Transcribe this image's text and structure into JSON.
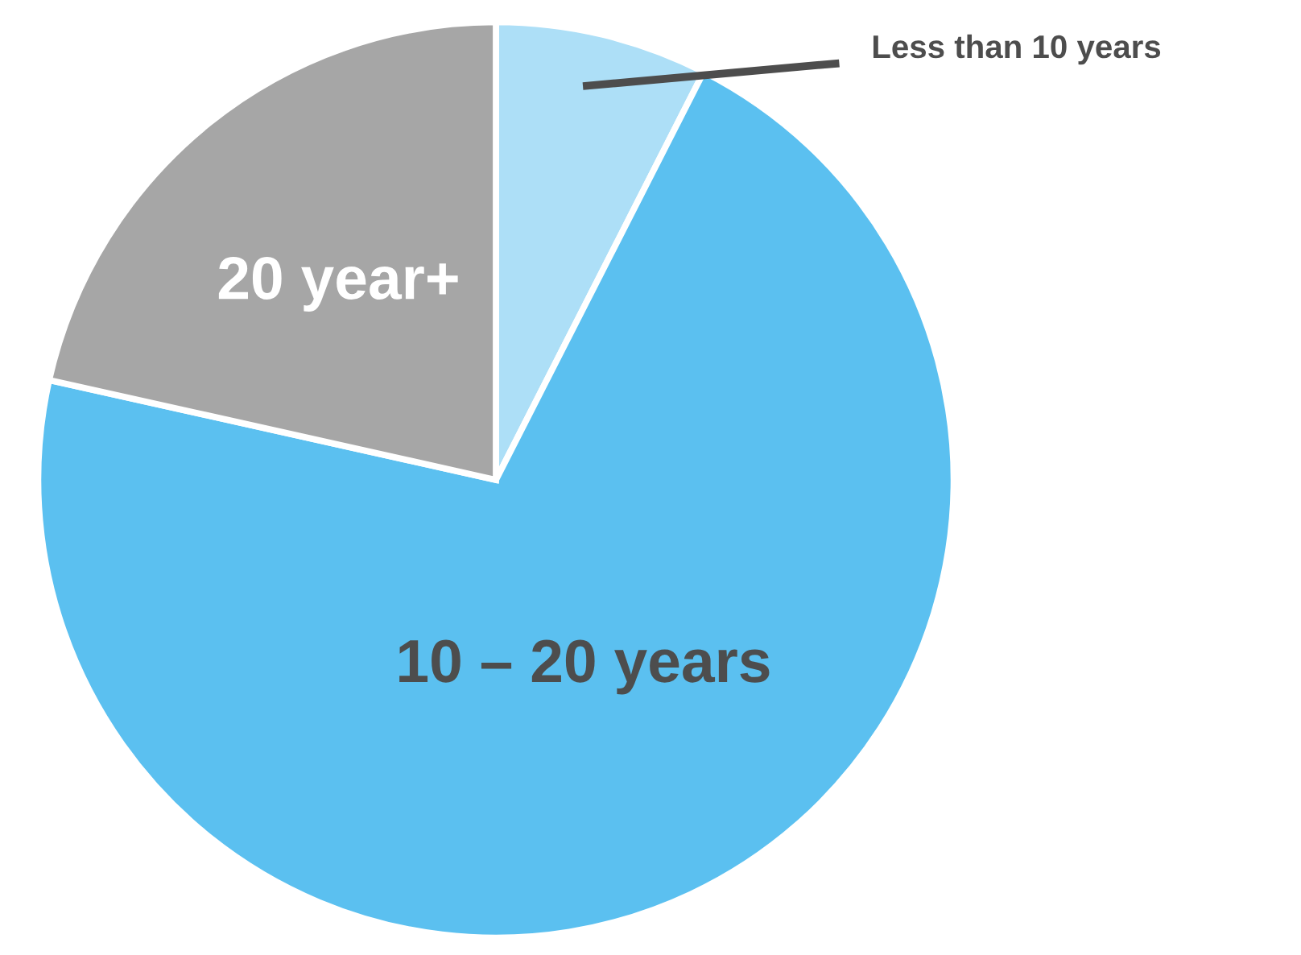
{
  "chart_data": {
    "type": "pie",
    "categories": [
      "Less than 10 years",
      "10 – 20 years",
      "20 year+"
    ],
    "values": [
      7.5,
      71,
      21.5
    ],
    "colors": [
      "#addff7",
      "#5bc0f0",
      "#a6a6a6"
    ],
    "legend": false
  }
}
